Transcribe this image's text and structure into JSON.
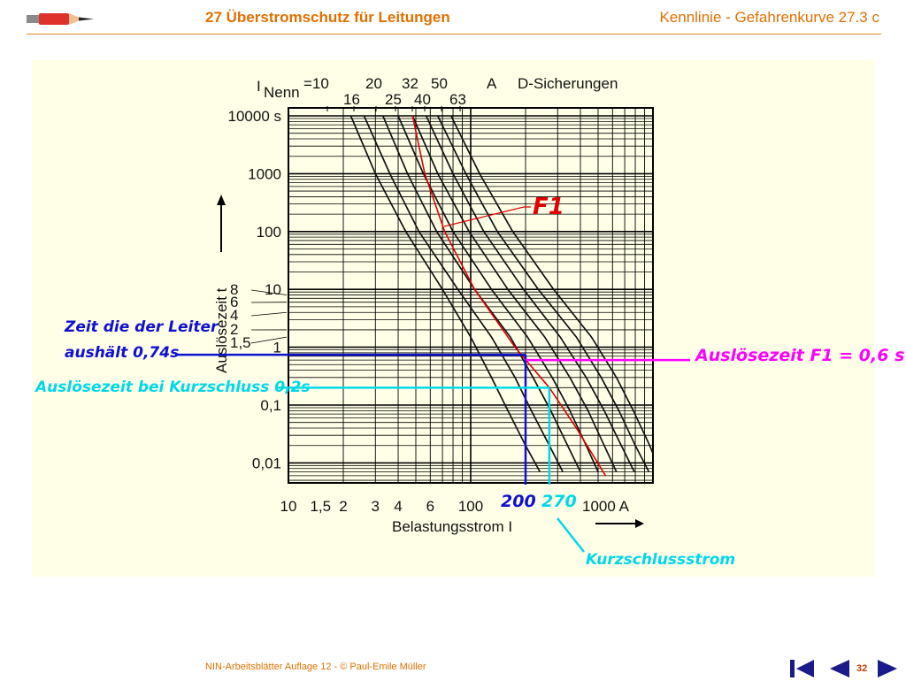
{
  "header": {
    "title_left": "27  Überstromschutz für Leitungen",
    "title_right": "Kennlinie - Gefahrenkurve  27.3 c"
  },
  "footer": {
    "text": "NIN-Arbeitsblätter Auflage 12 -  © Paul-Emile Müller",
    "page": "32"
  },
  "colors": {
    "accent": "#e07000",
    "panel": "#ffffe8",
    "f1_curve": "#e00000",
    "leiter": "#1010d0",
    "kurzschluss": "#00d8e8",
    "ausloese_f1": "#ff00ff"
  },
  "chart_data": {
    "type": "line",
    "scale": "log-log",
    "header_label": "D-Sicherungen",
    "i_nenn_unit": "A",
    "x_tick_labels": [
      "10",
      "1,5",
      "2",
      "3",
      "4",
      "6",
      "100",
      "1000 A"
    ],
    "x_ticks": [
      10,
      15,
      20,
      30,
      40,
      60,
      100,
      1000
    ],
    "y_tick_labels": [
      "10000 s",
      "1000",
      "100",
      "10",
      "1",
      "0,1",
      "0,01"
    ],
    "y_ticks": [
      10000,
      1000,
      100,
      10,
      1,
      0.1,
      0.01
    ],
    "y_sub_labels": [
      "8",
      "6",
      "4",
      "2",
      "1,5"
    ],
    "xlabel": "Belastungsstrom  I",
    "ylabel": "Auslösezeit  t",
    "xlim": [
      10,
      1000
    ],
    "ylim": [
      0.005,
      10000
    ],
    "series": [
      {
        "name": "10",
        "points": [
          [
            22,
            10000
          ],
          [
            30,
            1000
          ],
          [
            44,
            100
          ],
          [
            70,
            10
          ],
          [
            100,
            1.5
          ],
          [
            130,
            0.3
          ],
          [
            160,
            0.08
          ],
          [
            200,
            0.02
          ],
          [
            240,
            0.007
          ]
        ]
      },
      {
        "name": "16",
        "points": [
          [
            26,
            10000
          ],
          [
            36,
            1000
          ],
          [
            52,
            100
          ],
          [
            85,
            10
          ],
          [
            130,
            1.5
          ],
          [
            175,
            0.3
          ],
          [
            215,
            0.08
          ],
          [
            270,
            0.02
          ],
          [
            320,
            0.007
          ]
        ]
      },
      {
        "name": "20",
        "points": [
          [
            33,
            10000
          ],
          [
            45,
            1000
          ],
          [
            65,
            100
          ],
          [
            105,
            10
          ],
          [
            165,
            1.5
          ],
          [
            220,
            0.3
          ],
          [
            275,
            0.08
          ],
          [
            340,
            0.02
          ],
          [
            400,
            0.007
          ]
        ]
      },
      {
        "name": "25",
        "points": [
          [
            40,
            10000
          ],
          [
            55,
            1000
          ],
          [
            80,
            100
          ],
          [
            130,
            10
          ],
          [
            205,
            1.5
          ],
          [
            280,
            0.3
          ],
          [
            350,
            0.08
          ],
          [
            430,
            0.02
          ],
          [
            500,
            0.007
          ]
        ]
      },
      {
        "name": "32",
        "points": [
          [
            48,
            10000
          ],
          [
            66,
            1000
          ],
          [
            98,
            100
          ],
          [
            160,
            10
          ],
          [
            255,
            1.5
          ],
          [
            350,
            0.3
          ],
          [
            440,
            0.08
          ],
          [
            540,
            0.02
          ],
          [
            630,
            0.007
          ]
        ]
      },
      {
        "name": "40",
        "points": [
          [
            57,
            10000
          ],
          [
            80,
            1000
          ],
          [
            118,
            100
          ],
          [
            195,
            10
          ],
          [
            310,
            1.5
          ],
          [
            430,
            0.3
          ],
          [
            540,
            0.08
          ],
          [
            670,
            0.02
          ],
          [
            790,
            0.007
          ]
        ]
      },
      {
        "name": "50",
        "points": [
          [
            66,
            10000
          ],
          [
            94,
            1000
          ],
          [
            140,
            100
          ],
          [
            235,
            10
          ],
          [
            380,
            1.5
          ],
          [
            520,
            0.3
          ],
          [
            650,
            0.08
          ],
          [
            800,
            0.02
          ],
          [
            950,
            0.007
          ]
        ]
      },
      {
        "name": "63",
        "points": [
          [
            78,
            10000
          ],
          [
            112,
            1000
          ],
          [
            170,
            100
          ],
          [
            285,
            10
          ],
          [
            460,
            1.5
          ],
          [
            630,
            0.3
          ],
          [
            780,
            0.08
          ],
          [
            960,
            0.02
          ],
          [
            1100,
            0.007
          ]
        ]
      },
      {
        "name": "F1",
        "color": "#e00000",
        "points": [
          [
            48,
            10000
          ],
          [
            56,
            1000
          ],
          [
            72,
            100
          ],
          [
            105,
            10
          ],
          [
            175,
            1
          ],
          [
            270,
            0.2
          ],
          [
            380,
            0.04
          ],
          [
            550,
            0.006
          ]
        ]
      }
    ],
    "i_nenn": {
      "prefix": "I",
      "subscript": "Nenn",
      "equals": "=10",
      "top_row": [
        "20",
        "32",
        "50"
      ],
      "bottom_row": [
        "16",
        "25",
        "40",
        "63"
      ]
    },
    "annotations": {
      "f1_label": "F1",
      "leiter_line1": "Zeit die der Leiter",
      "leiter_line2": "aushält 0,74s",
      "leiter_time_s": 0.74,
      "leiter_current": "200",
      "leiter_current_value": 200,
      "kurzschluss_zeit": "Auslösezeit bei Kurzschluss  0,2s",
      "kurzschluss_time_s": 0.2,
      "kurzschluss_current": "270",
      "kurzschluss_current_value": 270,
      "f1_zeit": "Auslösezeit F1 = 0,6 s",
      "f1_time_s": 0.6,
      "kurzschlussstrom": "Kurzschlussstrom"
    }
  }
}
